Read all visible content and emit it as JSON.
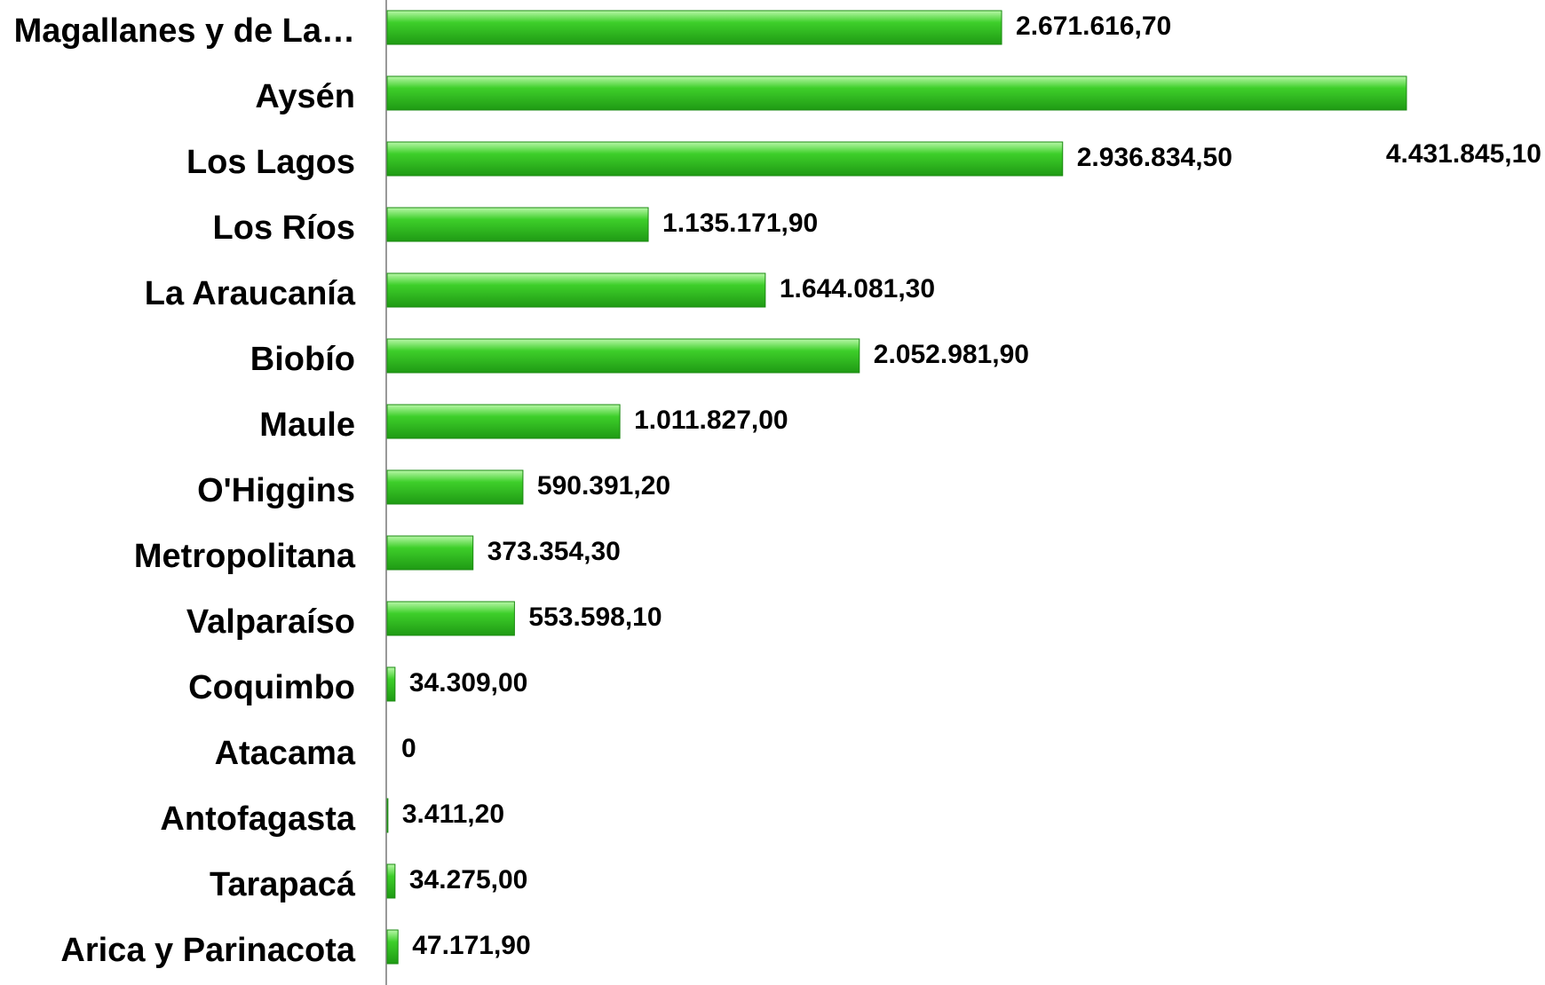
{
  "chart_data": {
    "type": "barh",
    "categories": [
      "Magallanes y de La…",
      "Aysén",
      "Los Lagos",
      "Los Ríos",
      "La Araucanía",
      "Biobío",
      "Maule",
      "O'Higgins",
      "Metropolitana",
      "Valparaíso",
      "Coquimbo",
      "Atacama",
      "Antofagasta",
      "Tarapacá",
      "Arica y Parinacota"
    ],
    "values": [
      2671616.7,
      4431845.1,
      2936834.5,
      1135171.9,
      1644081.3,
      2052981.9,
      1011827.0,
      590391.2,
      373354.3,
      553598.1,
      34309.0,
      0,
      3411.2,
      34275.0,
      47171.9
    ],
    "value_labels": [
      "2.671.616,70",
      "4.431.845,10",
      "2.936.834,50",
      "1.135.171,90",
      "1.644.081,30",
      "2.052.981,90",
      "1.011.827,00",
      "590.391,20",
      "373.354,30",
      "553.598,10",
      "34.309,00",
      "0",
      "3.411,20",
      "34.275,00",
      "47.171,90"
    ],
    "color": "#3ecf2a"
  }
}
